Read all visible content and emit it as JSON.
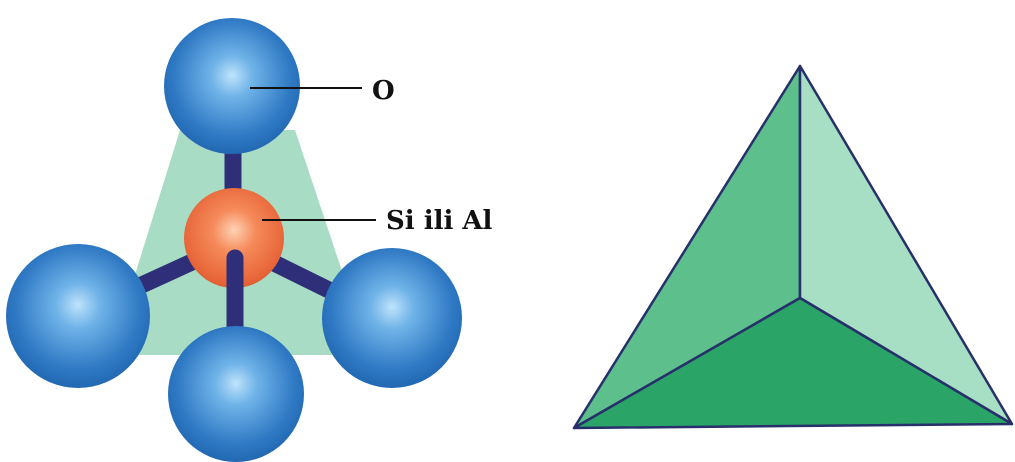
{
  "diagram": {
    "labels": {
      "oxygen": "O",
      "center_atom": "Si ili Al"
    },
    "colors": {
      "background": "#ffffff",
      "oxygen_sphere": "#2f79c4",
      "oxygen_highlight": "#a9d6f6",
      "center_sphere": "#e8673a",
      "center_highlight": "#ffc9a8",
      "bond": "#2e2f78",
      "tetra_shadow": "#a8dcc5",
      "tetra_face_left": "#5cbf8c",
      "tetra_face_right": "#a6dfc4",
      "tetra_face_bottom": "#2aa467",
      "tetra_edge": "#27306a",
      "leader_line": "#111111"
    }
  }
}
